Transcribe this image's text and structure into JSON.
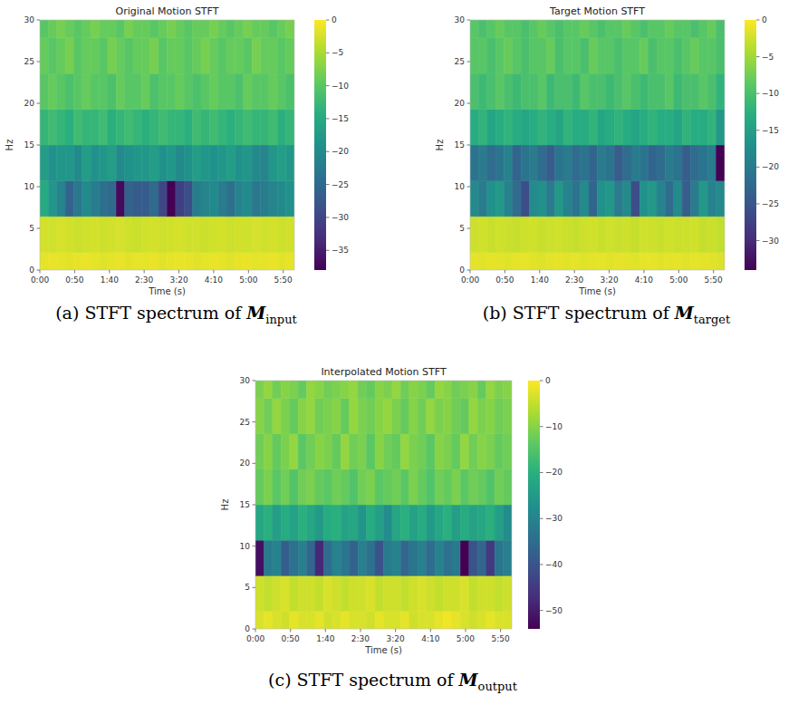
{
  "chart_data": [
    {
      "type": "heatmap",
      "title": "Original Motion STFT",
      "xlabel": "Time (s)",
      "ylabel": "Hz",
      "caption": "(a) STFT spectrum of ",
      "caption_symbol": "M",
      "caption_subscript": "input",
      "xlim": [
        0,
        366
      ],
      "ylim": [
        0,
        30
      ],
      "xticks": [
        {
          "value": 0,
          "label": "0:00"
        },
        {
          "value": 50,
          "label": "0:50"
        },
        {
          "value": 100,
          "label": "1:40"
        },
        {
          "value": 150,
          "label": "2:30"
        },
        {
          "value": 200,
          "label": "3:20"
        },
        {
          "value": 250,
          "label": "4:10"
        },
        {
          "value": 300,
          "label": "5:00"
        },
        {
          "value": 350,
          "label": "5:50"
        }
      ],
      "yticks": [
        0,
        5,
        10,
        15,
        20,
        25,
        30
      ],
      "x_edges": [
        0,
        12.2,
        24.4,
        36.6,
        48.8,
        61,
        73.2,
        85.4,
        97.6,
        109.8,
        122,
        134.2,
        146.4,
        158.6,
        170.8,
        183,
        195.2,
        207.4,
        219.6,
        231.8,
        244,
        256.2,
        268.4,
        280.6,
        292.8,
        305,
        317.2,
        329.4,
        341.6,
        353.8,
        366
      ],
      "y_edges": [
        0,
        2.14,
        6.43,
        10.71,
        15,
        19.29,
        23.57,
        27.86,
        30
      ],
      "cells": [
        [
          -1.5,
          -1.2,
          -1.4,
          -1.6,
          -1.3,
          -1.1,
          -1.5,
          -1.8,
          -1.4,
          -1.2,
          -1.6,
          -1.3,
          -1.5,
          -1.2,
          -1.7,
          -1.4,
          -1.1,
          -1.3,
          -1.6,
          -1.5,
          -1.2,
          -1.4,
          -1.8,
          -1.3,
          -1.1,
          -1.5,
          -1.4,
          -1.2,
          -1.6,
          -1.3
        ],
        [
          -2.5,
          -2.8,
          -2.4,
          -2.6,
          -3.0,
          -2.7,
          -2.5,
          -2.9,
          -2.6,
          -2.4,
          -2.8,
          -3.1,
          -2.7,
          -2.5,
          -2.9,
          -2.6,
          -2.4,
          -2.8,
          -2.6,
          -3.0,
          -2.7,
          -2.5,
          -2.9,
          -2.6,
          -2.8,
          -2.4,
          -2.7,
          -2.5,
          -2.9,
          -2.6
        ],
        [
          -15,
          -18,
          -21,
          -26,
          -23,
          -20,
          -22,
          -24,
          -25,
          -37,
          -26,
          -27,
          -27,
          -25,
          -30,
          -38,
          -31,
          -29,
          -22,
          -21,
          -20,
          -22,
          -24,
          -21,
          -20,
          -23,
          -22,
          -21,
          -20,
          -19
        ],
        [
          -17,
          -19,
          -18,
          -18,
          -20,
          -17,
          -19,
          -18,
          -17,
          -20,
          -19,
          -18,
          -18,
          -17,
          -19,
          -18,
          -20,
          -19,
          -17,
          -18,
          -19,
          -18,
          -17,
          -19,
          -18,
          -20,
          -21,
          -18,
          -17,
          -18
        ],
        [
          -13,
          -12,
          -13,
          -14,
          -12,
          -13,
          -13,
          -12,
          -14,
          -13,
          -12,
          -13,
          -14,
          -13,
          -12,
          -13,
          -13,
          -14,
          -12,
          -13,
          -12,
          -13,
          -14,
          -13,
          -12,
          -13,
          -13,
          -12,
          -14,
          -13
        ],
        [
          -10,
          -9,
          -10,
          -11,
          -10,
          -9,
          -10,
          -10,
          -11,
          -9,
          -10,
          -10,
          -9,
          -11,
          -10,
          -10,
          -9,
          -10,
          -11,
          -10,
          -9,
          -10,
          -10,
          -11,
          -9,
          -10,
          -10,
          -9,
          -10,
          -11
        ],
        [
          -9,
          -10,
          -9,
          -8,
          -10,
          -9,
          -9,
          -10,
          -8,
          -9,
          -10,
          -9,
          -9,
          -8,
          -10,
          -9,
          -9,
          -10,
          -9,
          -8,
          -9,
          -10,
          -9,
          -9,
          -10,
          -8,
          -9,
          -9,
          -10,
          -9
        ],
        [
          -10,
          -9,
          -8,
          -9,
          -10,
          -9,
          -8,
          -9,
          -9,
          -10,
          -8,
          -9,
          -9,
          -10,
          -9,
          -8,
          -9,
          -10,
          -9,
          -9,
          -8,
          -9,
          -10,
          -9,
          -8,
          -9,
          -9,
          -10,
          -9,
          -8
        ]
      ],
      "colorbar": {
        "range": [
          -38,
          0
        ],
        "ticks": [
          {
            "value": 0,
            "label": "0"
          },
          {
            "value": -5,
            "label": "−5"
          },
          {
            "value": -10,
            "label": "−10"
          },
          {
            "value": -15,
            "label": "−15"
          },
          {
            "value": -20,
            "label": "−20"
          },
          {
            "value": -25,
            "label": "−25"
          },
          {
            "value": -30,
            "label": "−30"
          },
          {
            "value": -35,
            "label": "−35"
          }
        ]
      }
    },
    {
      "type": "heatmap",
      "title": "Target Motion STFT",
      "xlabel": "Time (s)",
      "ylabel": "Hz",
      "caption": "(b) STFT spectrum of ",
      "caption_symbol": "M",
      "caption_subscript": "target",
      "xlim": [
        0,
        366
      ],
      "ylim": [
        0,
        30
      ],
      "xticks": [
        {
          "value": 0,
          "label": "0:00"
        },
        {
          "value": 50,
          "label": "0:50"
        },
        {
          "value": 100,
          "label": "1:40"
        },
        {
          "value": 150,
          "label": "2:30"
        },
        {
          "value": 200,
          "label": "3:20"
        },
        {
          "value": 250,
          "label": "4:10"
        },
        {
          "value": 300,
          "label": "5:00"
        },
        {
          "value": 350,
          "label": "5:50"
        }
      ],
      "yticks": [
        0,
        5,
        10,
        15,
        20,
        25,
        30
      ],
      "x_edges": [
        0,
        12.2,
        24.4,
        36.6,
        48.8,
        61,
        73.2,
        85.4,
        97.6,
        109.8,
        122,
        134.2,
        146.4,
        158.6,
        170.8,
        183,
        195.2,
        207.4,
        219.6,
        231.8,
        244,
        256.2,
        268.4,
        280.6,
        292.8,
        305,
        317.2,
        329.4,
        341.6,
        353.8,
        366
      ],
      "y_edges": [
        0,
        2.14,
        6.43,
        10.71,
        15,
        19.29,
        23.57,
        27.86,
        30
      ],
      "cells": [
        [
          -1.3,
          -1.5,
          -1.2,
          -1.4,
          -1.6,
          -1.2,
          -1.3,
          -1.5,
          -1.7,
          -1.4,
          -1.2,
          -1.5,
          -1.3,
          -1.6,
          -1.4,
          -1.2,
          -1.5,
          -1.3,
          -1.4,
          -1.6,
          -1.3,
          -1.2,
          -1.5,
          -1.4,
          -1.3,
          -1.6,
          -1.2,
          -1.4,
          -1.5,
          -1.8
        ],
        [
          -2.6,
          -2.4,
          -2.8,
          -2.5,
          -2.7,
          -2.9,
          -2.6,
          -2.4,
          -2.8,
          -2.6,
          -2.5,
          -2.7,
          -3.0,
          -2.6,
          -2.4,
          -2.8,
          -2.5,
          -2.7,
          -2.6,
          -2.9,
          -2.4,
          -2.6,
          -2.8,
          -2.5,
          -2.7,
          -2.6,
          -2.4,
          -2.9,
          -2.7,
          -3.2
        ],
        [
          -18,
          -20,
          -17,
          -16,
          -19,
          -22,
          -26,
          -18,
          -17,
          -20,
          -16,
          -19,
          -21,
          -18,
          -23,
          -17,
          -16,
          -20,
          -18,
          -26,
          -17,
          -16,
          -19,
          -22,
          -18,
          -24,
          -20,
          -16,
          -19,
          -18
        ],
        [
          -21,
          -20,
          -22,
          -21,
          -19,
          -23,
          -21,
          -20,
          -22,
          -24,
          -21,
          -20,
          -22,
          -21,
          -23,
          -20,
          -21,
          -24,
          -22,
          -20,
          -21,
          -23,
          -22,
          -20,
          -21,
          -24,
          -22,
          -21,
          -20,
          -34
        ],
        [
          -13,
          -12,
          -14,
          -13,
          -12,
          -13,
          -14,
          -13,
          -12,
          -13,
          -14,
          -12,
          -13,
          -13,
          -12,
          -14,
          -13,
          -12,
          -13,
          -14,
          -13,
          -12,
          -13,
          -13,
          -14,
          -12,
          -13,
          -13,
          -12,
          -16
        ],
        [
          -10,
          -11,
          -10,
          -9,
          -10,
          -11,
          -10,
          -10,
          -9,
          -11,
          -10,
          -10,
          -11,
          -9,
          -10,
          -10,
          -11,
          -10,
          -9,
          -10,
          -11,
          -10,
          -10,
          -9,
          -11,
          -10,
          -10,
          -9,
          -10,
          -12
        ],
        [
          -9,
          -9,
          -10,
          -9,
          -8,
          -9,
          -10,
          -9,
          -9,
          -8,
          -10,
          -9,
          -9,
          -10,
          -8,
          -9,
          -9,
          -10,
          -9,
          -9,
          -8,
          -10,
          -9,
          -9,
          -10,
          -9,
          -8,
          -9,
          -9,
          -10
        ],
        [
          -9,
          -10,
          -9,
          -8,
          -9,
          -9,
          -10,
          -9,
          -8,
          -9,
          -10,
          -9,
          -9,
          -8,
          -9,
          -10,
          -9,
          -9,
          -8,
          -9,
          -10,
          -9,
          -9,
          -8,
          -9,
          -9,
          -10,
          -9,
          -8,
          -10
        ]
      ],
      "colorbar": {
        "range": [
          -34,
          0
        ],
        "ticks": [
          {
            "value": 0,
            "label": "0"
          },
          {
            "value": -5,
            "label": "−5"
          },
          {
            "value": -10,
            "label": "−10"
          },
          {
            "value": -15,
            "label": "−15"
          },
          {
            "value": -20,
            "label": "−20"
          },
          {
            "value": -25,
            "label": "−25"
          },
          {
            "value": -30,
            "label": "−30"
          }
        ]
      }
    },
    {
      "type": "heatmap",
      "title": "Interpolated Motion STFT",
      "xlabel": "Time (s)",
      "ylabel": "Hz",
      "caption": "(c) STFT spectrum of ",
      "caption_symbol": "M",
      "caption_subscript": "output",
      "xlim": [
        0,
        366
      ],
      "ylim": [
        0,
        30
      ],
      "xticks": [
        {
          "value": 0,
          "label": "0:00"
        },
        {
          "value": 50,
          "label": "0:50"
        },
        {
          "value": 100,
          "label": "1:40"
        },
        {
          "value": 150,
          "label": "2:30"
        },
        {
          "value": 200,
          "label": "3:20"
        },
        {
          "value": 250,
          "label": "4:10"
        },
        {
          "value": 300,
          "label": "5:00"
        },
        {
          "value": 350,
          "label": "5:50"
        }
      ],
      "yticks": [
        0,
        5,
        10,
        15,
        20,
        25,
        30
      ],
      "x_edges": [
        0,
        12.2,
        24.4,
        36.6,
        48.8,
        61,
        73.2,
        85.4,
        97.6,
        109.8,
        122,
        134.2,
        146.4,
        158.6,
        170.8,
        183,
        195.2,
        207.4,
        219.6,
        231.8,
        244,
        256.2,
        268.4,
        280.6,
        292.8,
        305,
        317.2,
        329.4,
        341.6,
        353.8,
        366
      ],
      "y_edges": [
        0,
        2.14,
        6.43,
        10.71,
        15,
        19.29,
        23.57,
        27.86,
        30
      ],
      "cells": [
        [
          -3,
          -2,
          -3,
          -4,
          -2,
          -3,
          -3,
          -2,
          -4,
          -3,
          -2,
          -3,
          -3,
          -4,
          -2,
          -3,
          -3,
          -2,
          -4,
          -3,
          -3,
          -2,
          -1,
          -2,
          -3,
          -4,
          -3,
          -2,
          -3,
          -3
        ],
        [
          -4,
          -5,
          -4,
          -3,
          -5,
          -4,
          -4,
          -5,
          -3,
          -4,
          -5,
          -4,
          -4,
          -3,
          -5,
          -4,
          -4,
          -5,
          -4,
          -3,
          -4,
          -5,
          -4,
          -4,
          -3,
          -5,
          -4,
          -4,
          -5,
          -4
        ],
        [
          -52,
          -32,
          -30,
          -38,
          -34,
          -31,
          -36,
          -48,
          -35,
          -30,
          -33,
          -37,
          -31,
          -34,
          -40,
          -32,
          -30,
          -36,
          -33,
          -31,
          -35,
          -30,
          -34,
          -32,
          -54,
          -40,
          -36,
          -45,
          -33,
          -31
        ],
        [
          -22,
          -20,
          -24,
          -21,
          -23,
          -20,
          -22,
          -25,
          -21,
          -20,
          -23,
          -22,
          -26,
          -21,
          -24,
          -28,
          -22,
          -20,
          -23,
          -21,
          -25,
          -22,
          -20,
          -24,
          -21,
          -23,
          -22,
          -20,
          -24,
          -28
        ],
        [
          -13,
          -11,
          -14,
          -12,
          -15,
          -12,
          -11,
          -13,
          -14,
          -12,
          -13,
          -15,
          -12,
          -11,
          -14,
          -13,
          -12,
          -14,
          -11,
          -13,
          -15,
          -12,
          -13,
          -11,
          -14,
          -12,
          -13,
          -15,
          -12,
          -13
        ],
        [
          -12,
          -10,
          -13,
          -11,
          -9,
          -14,
          -12,
          -10,
          -11,
          -13,
          -9,
          -12,
          -11,
          -14,
          -10,
          -12,
          -13,
          -9,
          -11,
          -12,
          -14,
          -10,
          -11,
          -13,
          -9,
          -12,
          -10,
          -11,
          -13,
          -12
        ],
        [
          -10,
          -12,
          -9,
          -11,
          -13,
          -10,
          -9,
          -12,
          -11,
          -10,
          -13,
          -9,
          -11,
          -12,
          -10,
          -9,
          -11,
          -13,
          -10,
          -12,
          -9,
          -11,
          -10,
          -12,
          -13,
          -9,
          -11,
          -10,
          -12,
          -11
        ],
        [
          -11,
          -9,
          -12,
          -10,
          -11,
          -13,
          -9,
          -10,
          -12,
          -11,
          -10,
          -9,
          -12,
          -13,
          -10,
          -11,
          -9,
          -12,
          -10,
          -11,
          -13,
          -9,
          -10,
          -12,
          -11,
          -10,
          -13,
          -9,
          -11,
          -10
        ]
      ],
      "colorbar": {
        "range": [
          -54,
          0
        ],
        "ticks": [
          {
            "value": 0,
            "label": "0"
          },
          {
            "value": -10,
            "label": "−10"
          },
          {
            "value": -20,
            "label": "−20"
          },
          {
            "value": -30,
            "label": "−30"
          },
          {
            "value": -40,
            "label": "−40"
          },
          {
            "value": -50,
            "label": "−50"
          }
        ]
      }
    }
  ]
}
